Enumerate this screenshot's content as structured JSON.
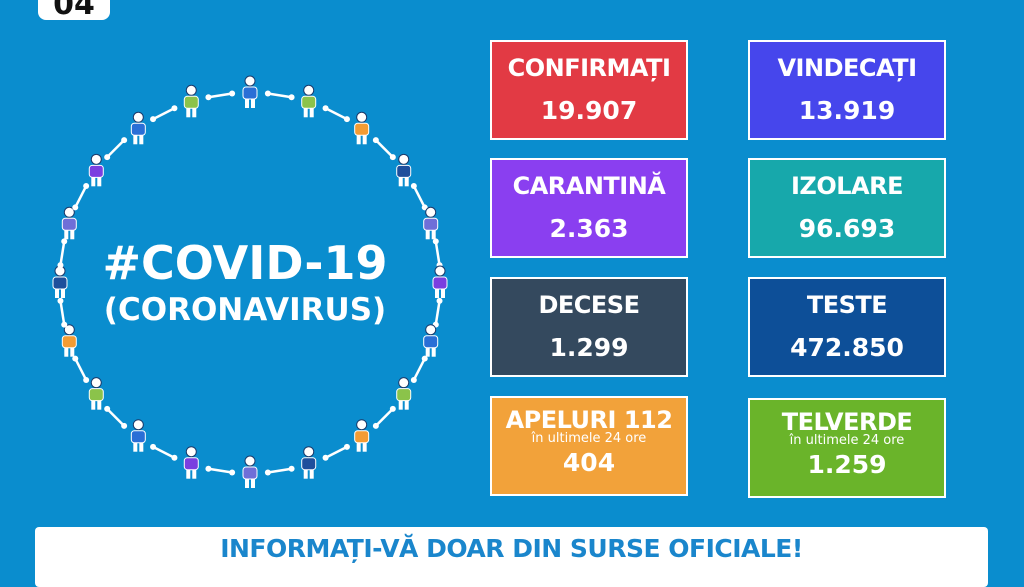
{
  "date_badge": "04",
  "headline": {
    "line1": "#COVID-19",
    "line2": "(CORONAVIRUS)"
  },
  "stats": [
    {
      "label": "CONFIRMAȚI",
      "value": "19.907",
      "color": "#e23a44"
    },
    {
      "label": "VINDECAȚI",
      "value": "13.919",
      "color": "#4646ec"
    },
    {
      "label": "CARANTINĂ",
      "value": "2.363",
      "color": "#8a3ff0"
    },
    {
      "label": "IZOLARE",
      "value": "96.693",
      "color": "#17a8ab"
    },
    {
      "label": "DECESE",
      "value": "1.299",
      "color": "#34495e"
    },
    {
      "label": "TESTE",
      "value": "472.850",
      "color": "#0d4f98"
    },
    {
      "label": "APELURI 112",
      "sub": "în ultimele 24 ore",
      "value": "404",
      "color": "#f2a23a"
    },
    {
      "label": "TELVERDE",
      "sub": "în ultimele 24 ore",
      "value": "1.259",
      "color": "#6ab42a"
    }
  ],
  "banner": {
    "text": "INFORMAȚI-VĂ DOAR DIN SURSE OFICIALE!"
  },
  "figure_colors": [
    "#2a6fd6",
    "#8bc34a",
    "#f39c34",
    "#1e4f9c",
    "#6f6fd8",
    "#7a3fe0"
  ]
}
